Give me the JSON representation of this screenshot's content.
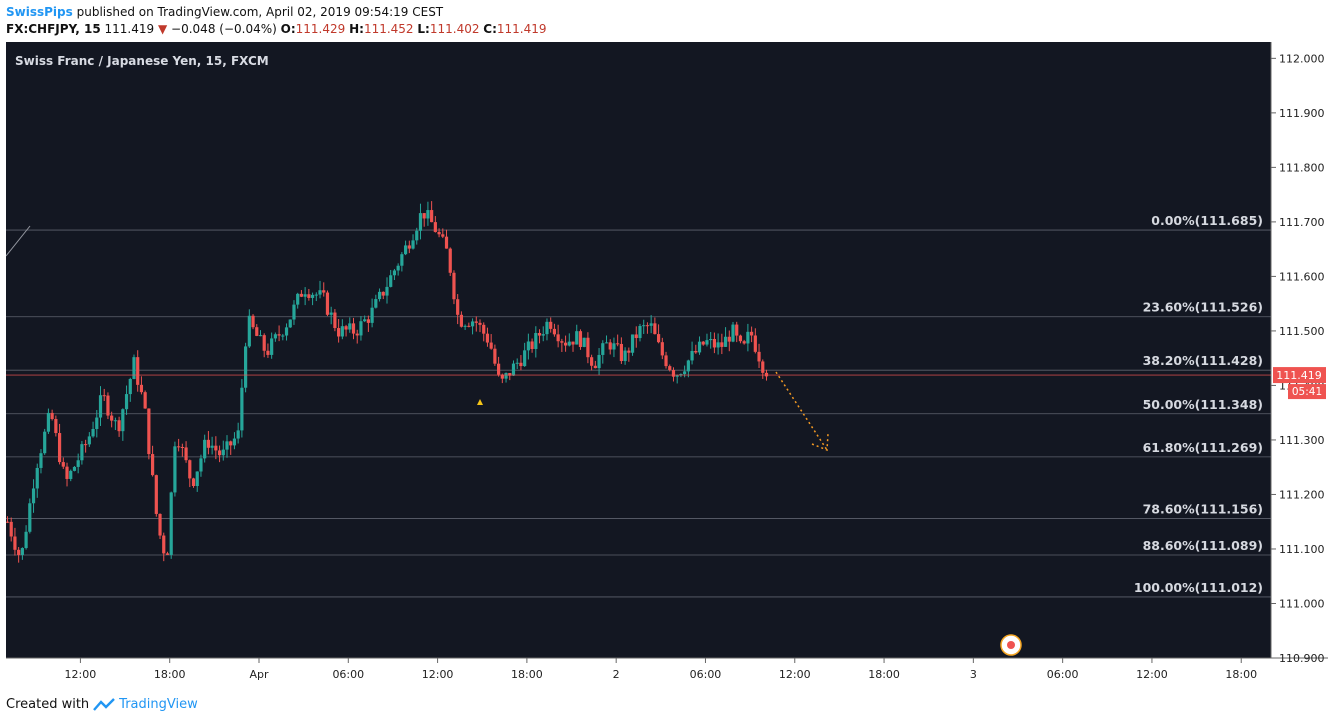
{
  "header": {
    "user": "SwissPips",
    "published": "published on TradingView.com, April 02, 2019 09:54:19 CEST",
    "symbol": "FX:CHFJPY, 15",
    "price": "111.419",
    "change": "−0.048 (−0.04%)",
    "o_label": "O:",
    "o_value": "111.429",
    "h_label": "H:",
    "h_value": "111.452",
    "l_label": "L:",
    "l_value": "111.402",
    "c_label": "C:",
    "c_value": "111.419"
  },
  "footer": {
    "created": "Created with",
    "brand": "TradingView"
  },
  "chart_data": {
    "type": "candlestick",
    "title": "Swiss Franc / Japanese Yen, 15, FXCM",
    "ylim": [
      110.9,
      112.03
    ],
    "y_ticks": [
      "112.000",
      "111.900",
      "111.800",
      "111.700",
      "111.600",
      "111.500",
      "111.400",
      "111.300",
      "111.200",
      "111.100",
      "111.000",
      "110.900"
    ],
    "x_ticks": [
      {
        "label": "12:00",
        "t": 12
      },
      {
        "label": "18:00",
        "t": 18
      },
      {
        "label": "Apr",
        "t": 24
      },
      {
        "label": "06:00",
        "t": 30
      },
      {
        "label": "12:00",
        "t": 36
      },
      {
        "label": "18:00",
        "t": 42
      },
      {
        "label": "2",
        "t": 48
      },
      {
        "label": "06:00",
        "t": 54
      },
      {
        "label": "12:00",
        "t": 60
      },
      {
        "label": "18:00",
        "t": 66
      },
      {
        "label": "3",
        "t": 72
      },
      {
        "label": "06:00",
        "t": 78
      },
      {
        "label": "12:00",
        "t": 84
      },
      {
        "label": "18:00",
        "t": 90
      }
    ],
    "xlim": [
      7,
      92
    ],
    "fib_levels": [
      {
        "label": "0.00%(111.685)",
        "value": 111.685
      },
      {
        "label": "23.60%(111.526)",
        "value": 111.526
      },
      {
        "label": "38.20%(111.428)",
        "value": 111.428
      },
      {
        "label": "50.00%(111.348)",
        "value": 111.348
      },
      {
        "label": "61.80%(111.269)",
        "value": 111.269
      },
      {
        "label": "78.60%(111.156)",
        "value": 111.156
      },
      {
        "label": "88.60%(111.089)",
        "value": 111.089
      },
      {
        "label": "100.00%(111.012)",
        "value": 111.012
      }
    ],
    "last_price": {
      "value": 111.419,
      "label": "111.419",
      "countdown": "05:41"
    },
    "anchors": [
      {
        "t": 7.1,
        "p": 111.15
      },
      {
        "t": 8,
        "p": 111.08
      },
      {
        "t": 9,
        "p": 111.25
      },
      {
        "t": 10,
        "p": 111.35
      },
      {
        "t": 11,
        "p": 111.22
      },
      {
        "t": 12.5,
        "p": 111.3
      },
      {
        "t": 13.5,
        "p": 111.38
      },
      {
        "t": 14.5,
        "p": 111.32
      },
      {
        "t": 15.6,
        "p": 111.44
      },
      {
        "t": 16.3,
        "p": 111.36
      },
      {
        "t": 17.2,
        "p": 111.14
      },
      {
        "t": 17.8,
        "p": 111.08
      },
      {
        "t": 18.4,
        "p": 111.32
      },
      {
        "t": 19.5,
        "p": 111.22
      },
      {
        "t": 20.5,
        "p": 111.3
      },
      {
        "t": 21.5,
        "p": 111.27
      },
      {
        "t": 22.6,
        "p": 111.31
      },
      {
        "t": 23.2,
        "p": 111.52
      },
      {
        "t": 24.5,
        "p": 111.46
      },
      {
        "t": 26,
        "p": 111.52
      },
      {
        "t": 27,
        "p": 111.58
      },
      {
        "t": 28.3,
        "p": 111.56
      },
      {
        "t": 29.3,
        "p": 111.5
      },
      {
        "t": 30.5,
        "p": 111.5
      },
      {
        "t": 31.5,
        "p": 111.53
      },
      {
        "t": 32.5,
        "p": 111.58
      },
      {
        "t": 34,
        "p": 111.66
      },
      {
        "t": 35,
        "p": 111.72
      },
      {
        "t": 35.8,
        "p": 111.69
      },
      {
        "t": 36.7,
        "p": 111.64
      },
      {
        "t": 37.4,
        "p": 111.52
      },
      {
        "t": 38.5,
        "p": 111.52
      },
      {
        "t": 39.5,
        "p": 111.48
      },
      {
        "t": 40.2,
        "p": 111.4
      },
      {
        "t": 41,
        "p": 111.43
      },
      {
        "t": 42.5,
        "p": 111.48
      },
      {
        "t": 43.5,
        "p": 111.52
      },
      {
        "t": 44.5,
        "p": 111.48
      },
      {
        "t": 45.5,
        "p": 111.49
      },
      {
        "t": 46.5,
        "p": 111.44
      },
      {
        "t": 47.5,
        "p": 111.48
      },
      {
        "t": 48.5,
        "p": 111.45
      },
      {
        "t": 49.5,
        "p": 111.5
      },
      {
        "t": 50.3,
        "p": 111.51
      },
      {
        "t": 51,
        "p": 111.46
      },
      {
        "t": 52,
        "p": 111.42
      },
      {
        "t": 53,
        "p": 111.45
      },
      {
        "t": 54,
        "p": 111.48
      },
      {
        "t": 55,
        "p": 111.47
      },
      {
        "t": 55.8,
        "p": 111.5
      },
      {
        "t": 56.5,
        "p": 111.46
      },
      {
        "t": 57,
        "p": 111.5
      },
      {
        "t": 57.8,
        "p": 111.44
      },
      {
        "t": 58.3,
        "p": 111.42
      }
    ],
    "candle_start": 7.1,
    "candle_end": 58.3,
    "candle_step": 0.25
  }
}
